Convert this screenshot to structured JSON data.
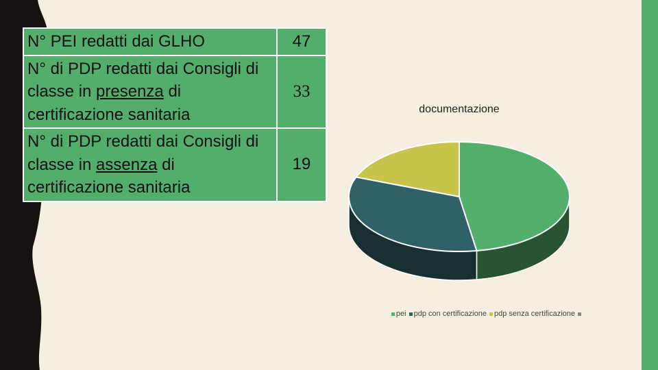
{
  "colors": {
    "background": "#f5efe1",
    "dark_band": "#161211",
    "accent_green": "#53ae6c",
    "pei": "#53ae6c",
    "pdp_con": "#316168",
    "pdp_senza": "#c8c34b"
  },
  "table": {
    "rows": [
      {
        "label_pre": "N° PEI redatti dai GLHO",
        "label_u": "",
        "label_post": "",
        "value": "47"
      },
      {
        "label_pre": "N° di PDP redatti dai Consigli di classe in ",
        "label_u": "presenza",
        "label_post": " di certificazione sanitaria",
        "value": "33"
      },
      {
        "label_pre": "N° di PDP redatti dai Consigli di classe in ",
        "label_u": "assenza",
        "label_post": " di certificazione sanitaria",
        "value": "19"
      }
    ]
  },
  "chart_data": {
    "type": "pie",
    "title": "documentazione",
    "categories": [
      "pei",
      "pdp con certificazione",
      "pdp senza certificazione",
      ""
    ],
    "values": [
      47,
      33,
      19,
      0
    ],
    "legend_position": "bottom-right",
    "style": "3d"
  }
}
